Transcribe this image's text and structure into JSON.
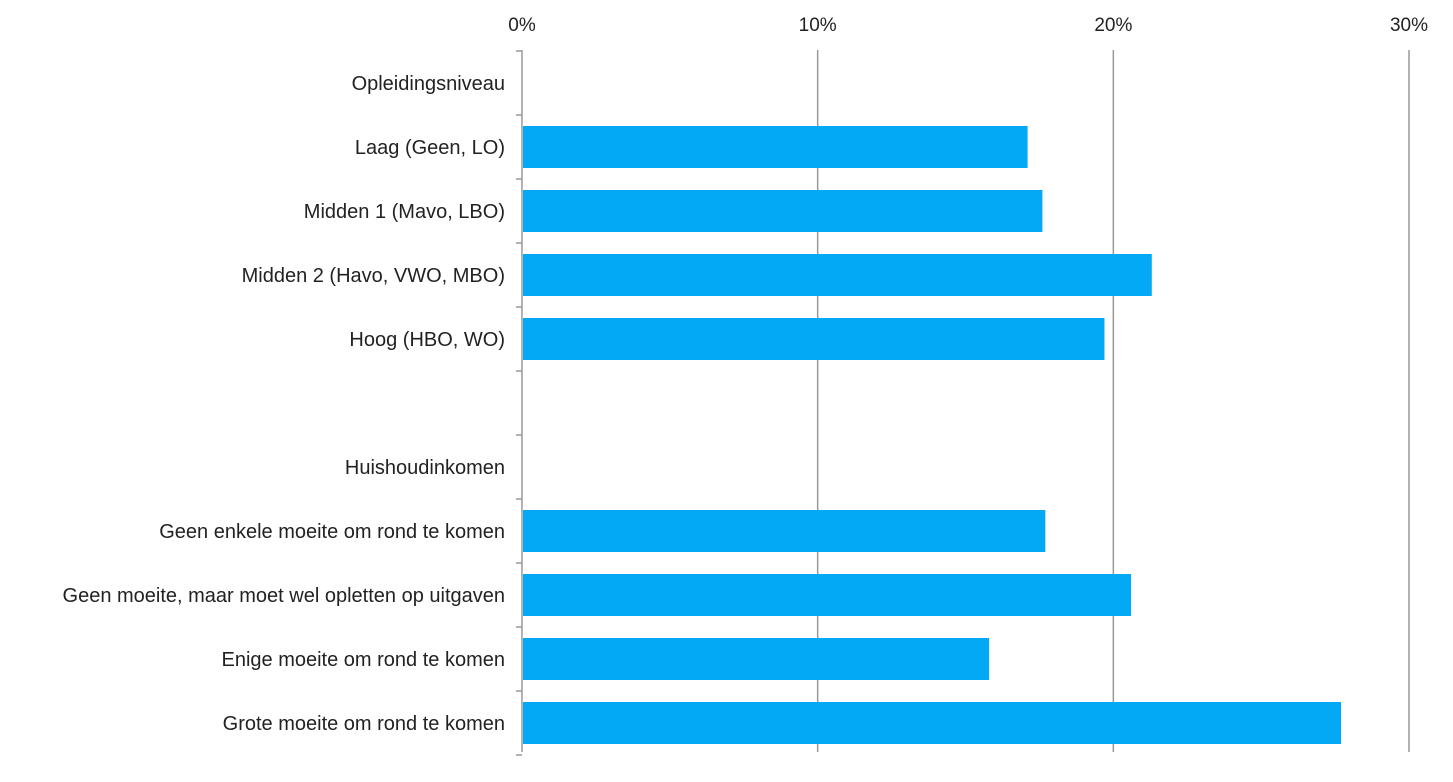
{
  "chart_data": {
    "type": "bar",
    "orientation": "horizontal",
    "categories": [
      "Opleidingsniveau",
      "Laag (Geen, LO)",
      "Midden 1 (Mavo, LBO)",
      "Midden 2 (Havo, VWO, MBO)",
      "Hoog (HBO, WO)",
      "",
      "Huishoudinkomen",
      "Geen enkele moeite om rond te komen",
      "Geen moeite, maar moet wel opletten op uitgaven",
      "Enige moeite om rond te komen",
      "Grote moeite om rond te komen"
    ],
    "values": [
      null,
      17.1,
      17.6,
      21.3,
      19.7,
      null,
      null,
      17.7,
      20.6,
      15.8,
      27.7
    ],
    "xlim": [
      0,
      30
    ],
    "ticks": [
      0,
      10,
      20,
      30
    ],
    "tick_labels": [
      "0%",
      "10%",
      "20%",
      "30%"
    ],
    "x_axis_position": "top",
    "gridlines": true,
    "legend": "none",
    "title": "",
    "xlabel": "",
    "ylabel": "",
    "bar_color": "#03A9F4",
    "grid_color": "#999999"
  }
}
